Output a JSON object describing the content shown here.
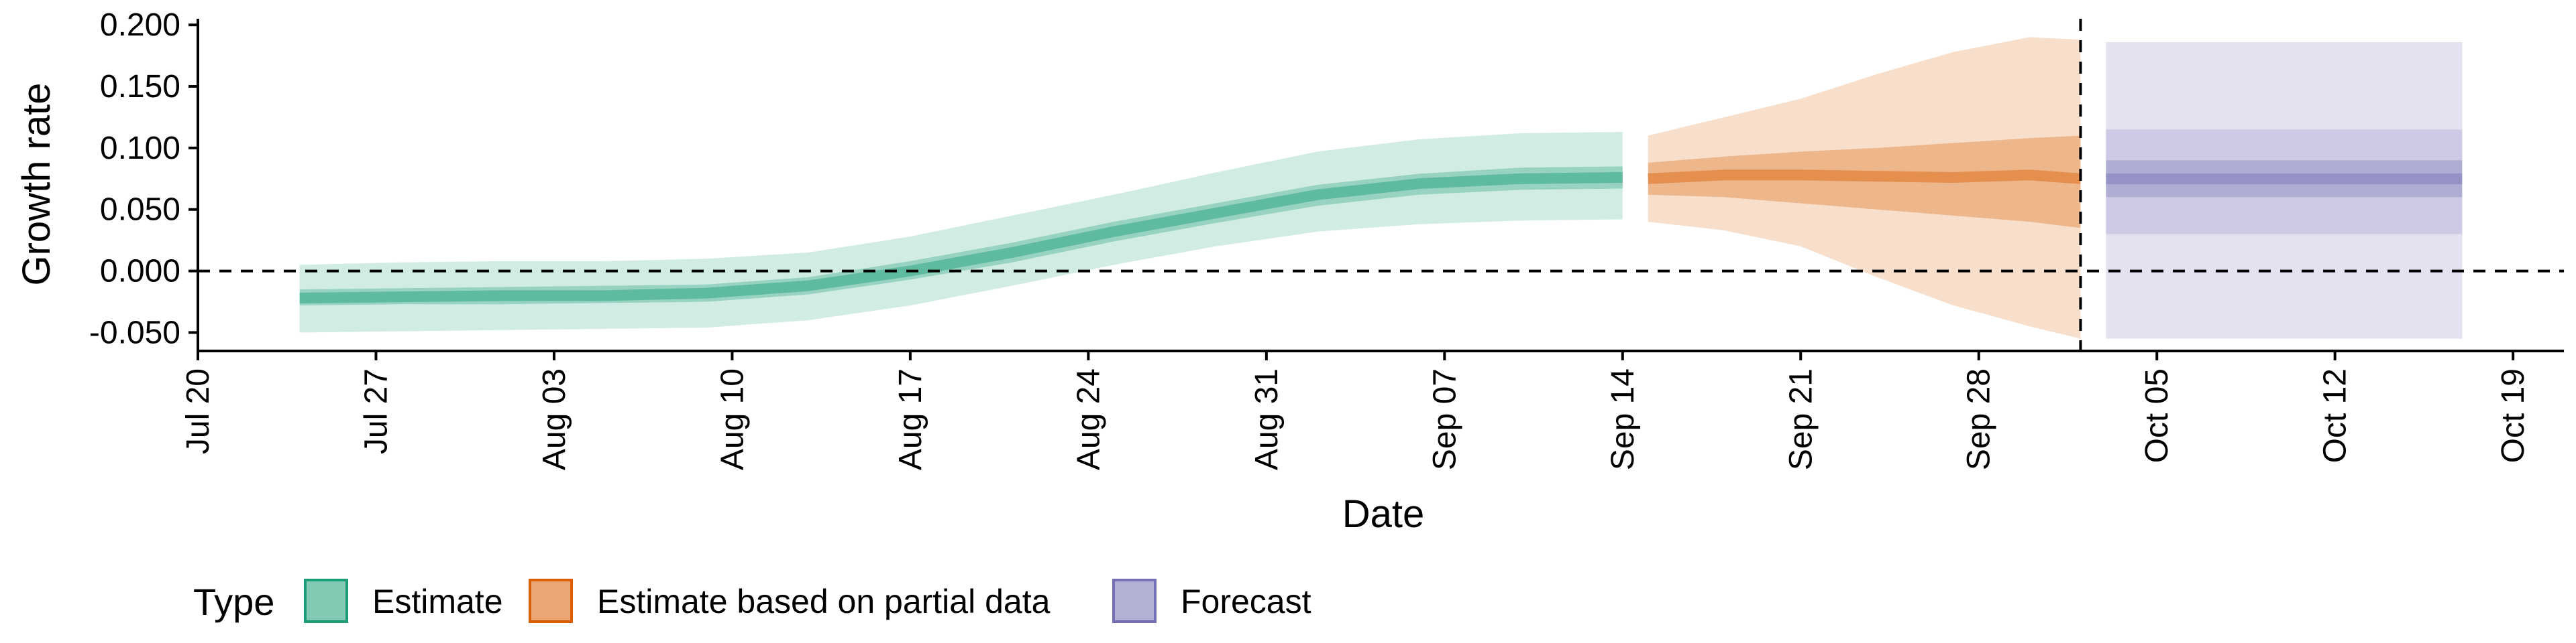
{
  "chart_data": {
    "type": "area",
    "xlabel": "Date",
    "ylabel": "Growth rate",
    "x_tick_labels": [
      "Jul 20",
      "Jul 27",
      "Aug 03",
      "Aug 10",
      "Aug 17",
      "Aug 24",
      "Aug 31",
      "Sep 07",
      "Sep 14",
      "Sep 21",
      "Sep 28",
      "Oct 05",
      "Oct 12",
      "Oct 19"
    ],
    "y_tick_labels": [
      "0.200",
      "0.150",
      "0.100",
      "0.050",
      "0.000",
      "-0.050"
    ],
    "y_ticks": [
      0.2,
      0.15,
      0.1,
      0.05,
      0.0,
      -0.05
    ],
    "xlim": [
      "2020-07-20",
      "2020-10-21"
    ],
    "ylim": [
      -0.065,
      0.205
    ],
    "reference_lines": {
      "horizontal_y": 0.0,
      "vertical_x": "2020-10-02"
    },
    "legend": {
      "title": "Type",
      "position": "bottom-left",
      "entries": [
        {
          "label": "Estimate",
          "color": "#1b9e77"
        },
        {
          "label": "Estimate based on partial data",
          "color": "#d95f02"
        },
        {
          "label": "Forecast",
          "color": "#7570b3"
        }
      ]
    },
    "series": [
      {
        "name": "Estimate",
        "color": "#1b9e77",
        "x": [
          "2020-07-24",
          "2020-07-28",
          "2020-08-01",
          "2020-08-05",
          "2020-08-09",
          "2020-08-13",
          "2020-08-17",
          "2020-08-21",
          "2020-08-25",
          "2020-08-29",
          "2020-09-02",
          "2020-09-06",
          "2020-09-10",
          "2020-09-14"
        ],
        "median": [
          -0.022,
          -0.021,
          -0.02,
          -0.02,
          -0.018,
          -0.012,
          0.0,
          0.015,
          0.032,
          0.047,
          0.062,
          0.071,
          0.075,
          0.076
        ],
        "lower_90": [
          -0.05,
          -0.049,
          -0.048,
          -0.047,
          -0.046,
          -0.04,
          -0.028,
          -0.012,
          0.005,
          0.02,
          0.032,
          0.038,
          0.041,
          0.042
        ],
        "upper_90": [
          0.005,
          0.007,
          0.008,
          0.008,
          0.01,
          0.015,
          0.028,
          0.045,
          0.062,
          0.08,
          0.097,
          0.107,
          0.112,
          0.113
        ],
        "lower_50": [
          -0.028,
          -0.027,
          -0.027,
          -0.026,
          -0.025,
          -0.019,
          -0.007,
          0.007,
          0.024,
          0.039,
          0.053,
          0.062,
          0.066,
          0.067
        ],
        "upper_50": [
          -0.015,
          -0.014,
          -0.013,
          -0.012,
          -0.011,
          -0.005,
          0.008,
          0.023,
          0.04,
          0.055,
          0.07,
          0.079,
          0.084,
          0.085
        ]
      },
      {
        "name": "Estimate based on partial data",
        "color": "#d95f02",
        "x": [
          "2020-09-15",
          "2020-09-18",
          "2020-09-21",
          "2020-09-24",
          "2020-09-27",
          "2020-09-30",
          "2020-10-02"
        ],
        "median": [
          0.075,
          0.078,
          0.078,
          0.077,
          0.076,
          0.078,
          0.075
        ],
        "lower_90": [
          0.04,
          0.033,
          0.02,
          -0.005,
          -0.028,
          -0.045,
          -0.055
        ],
        "upper_90": [
          0.11,
          0.125,
          0.14,
          0.16,
          0.178,
          0.19,
          0.188
        ],
        "lower_50": [
          0.062,
          0.06,
          0.055,
          0.05,
          0.045,
          0.04,
          0.035
        ],
        "upper_50": [
          0.088,
          0.093,
          0.097,
          0.1,
          0.104,
          0.108,
          0.11
        ]
      },
      {
        "name": "Forecast",
        "color": "#7570b3",
        "x": [
          "2020-10-03",
          "2020-10-17"
        ],
        "median": [
          0.075,
          0.075
        ],
        "lower_90": [
          -0.055,
          -0.055
        ],
        "upper_90": [
          0.186,
          0.186
        ],
        "lower_70": [
          0.03,
          0.03
        ],
        "upper_70": [
          0.115,
          0.115
        ],
        "lower_50": [
          0.06,
          0.06
        ],
        "upper_50": [
          0.09,
          0.09
        ]
      }
    ]
  }
}
